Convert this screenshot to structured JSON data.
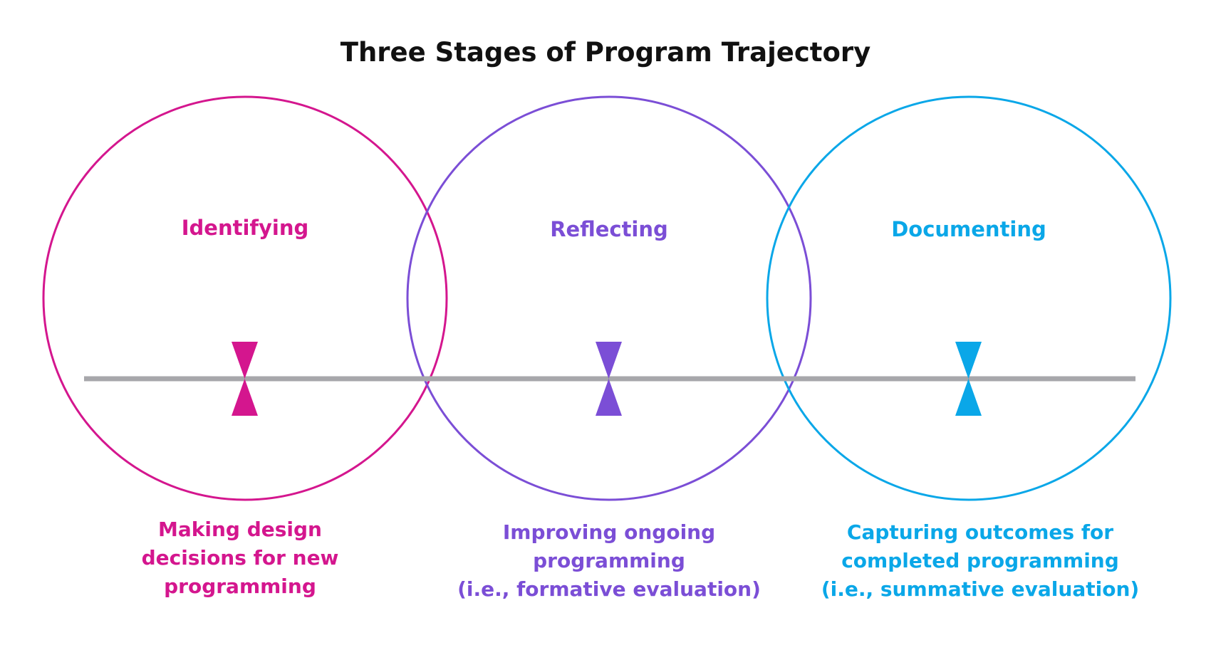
{
  "title": "Three Stages of Program Trajectory",
  "colors": {
    "identifying": "#d4168e",
    "reflecting": "#7b4ed6",
    "documenting": "#0aa7e8",
    "timeline": "#a7a7ab"
  },
  "stages": [
    {
      "label": "Identifying",
      "description": [
        "Making design",
        "decisions for new",
        "programming"
      ]
    },
    {
      "label": "Reflecting",
      "description": [
        "Improving ongoing",
        "programming",
        "(i.e., formative evaluation)"
      ]
    },
    {
      "label": "Documenting",
      "description": [
        "Capturing outcomes for",
        "completed programming",
        "(i.e., summative evaluation)"
      ]
    }
  ]
}
